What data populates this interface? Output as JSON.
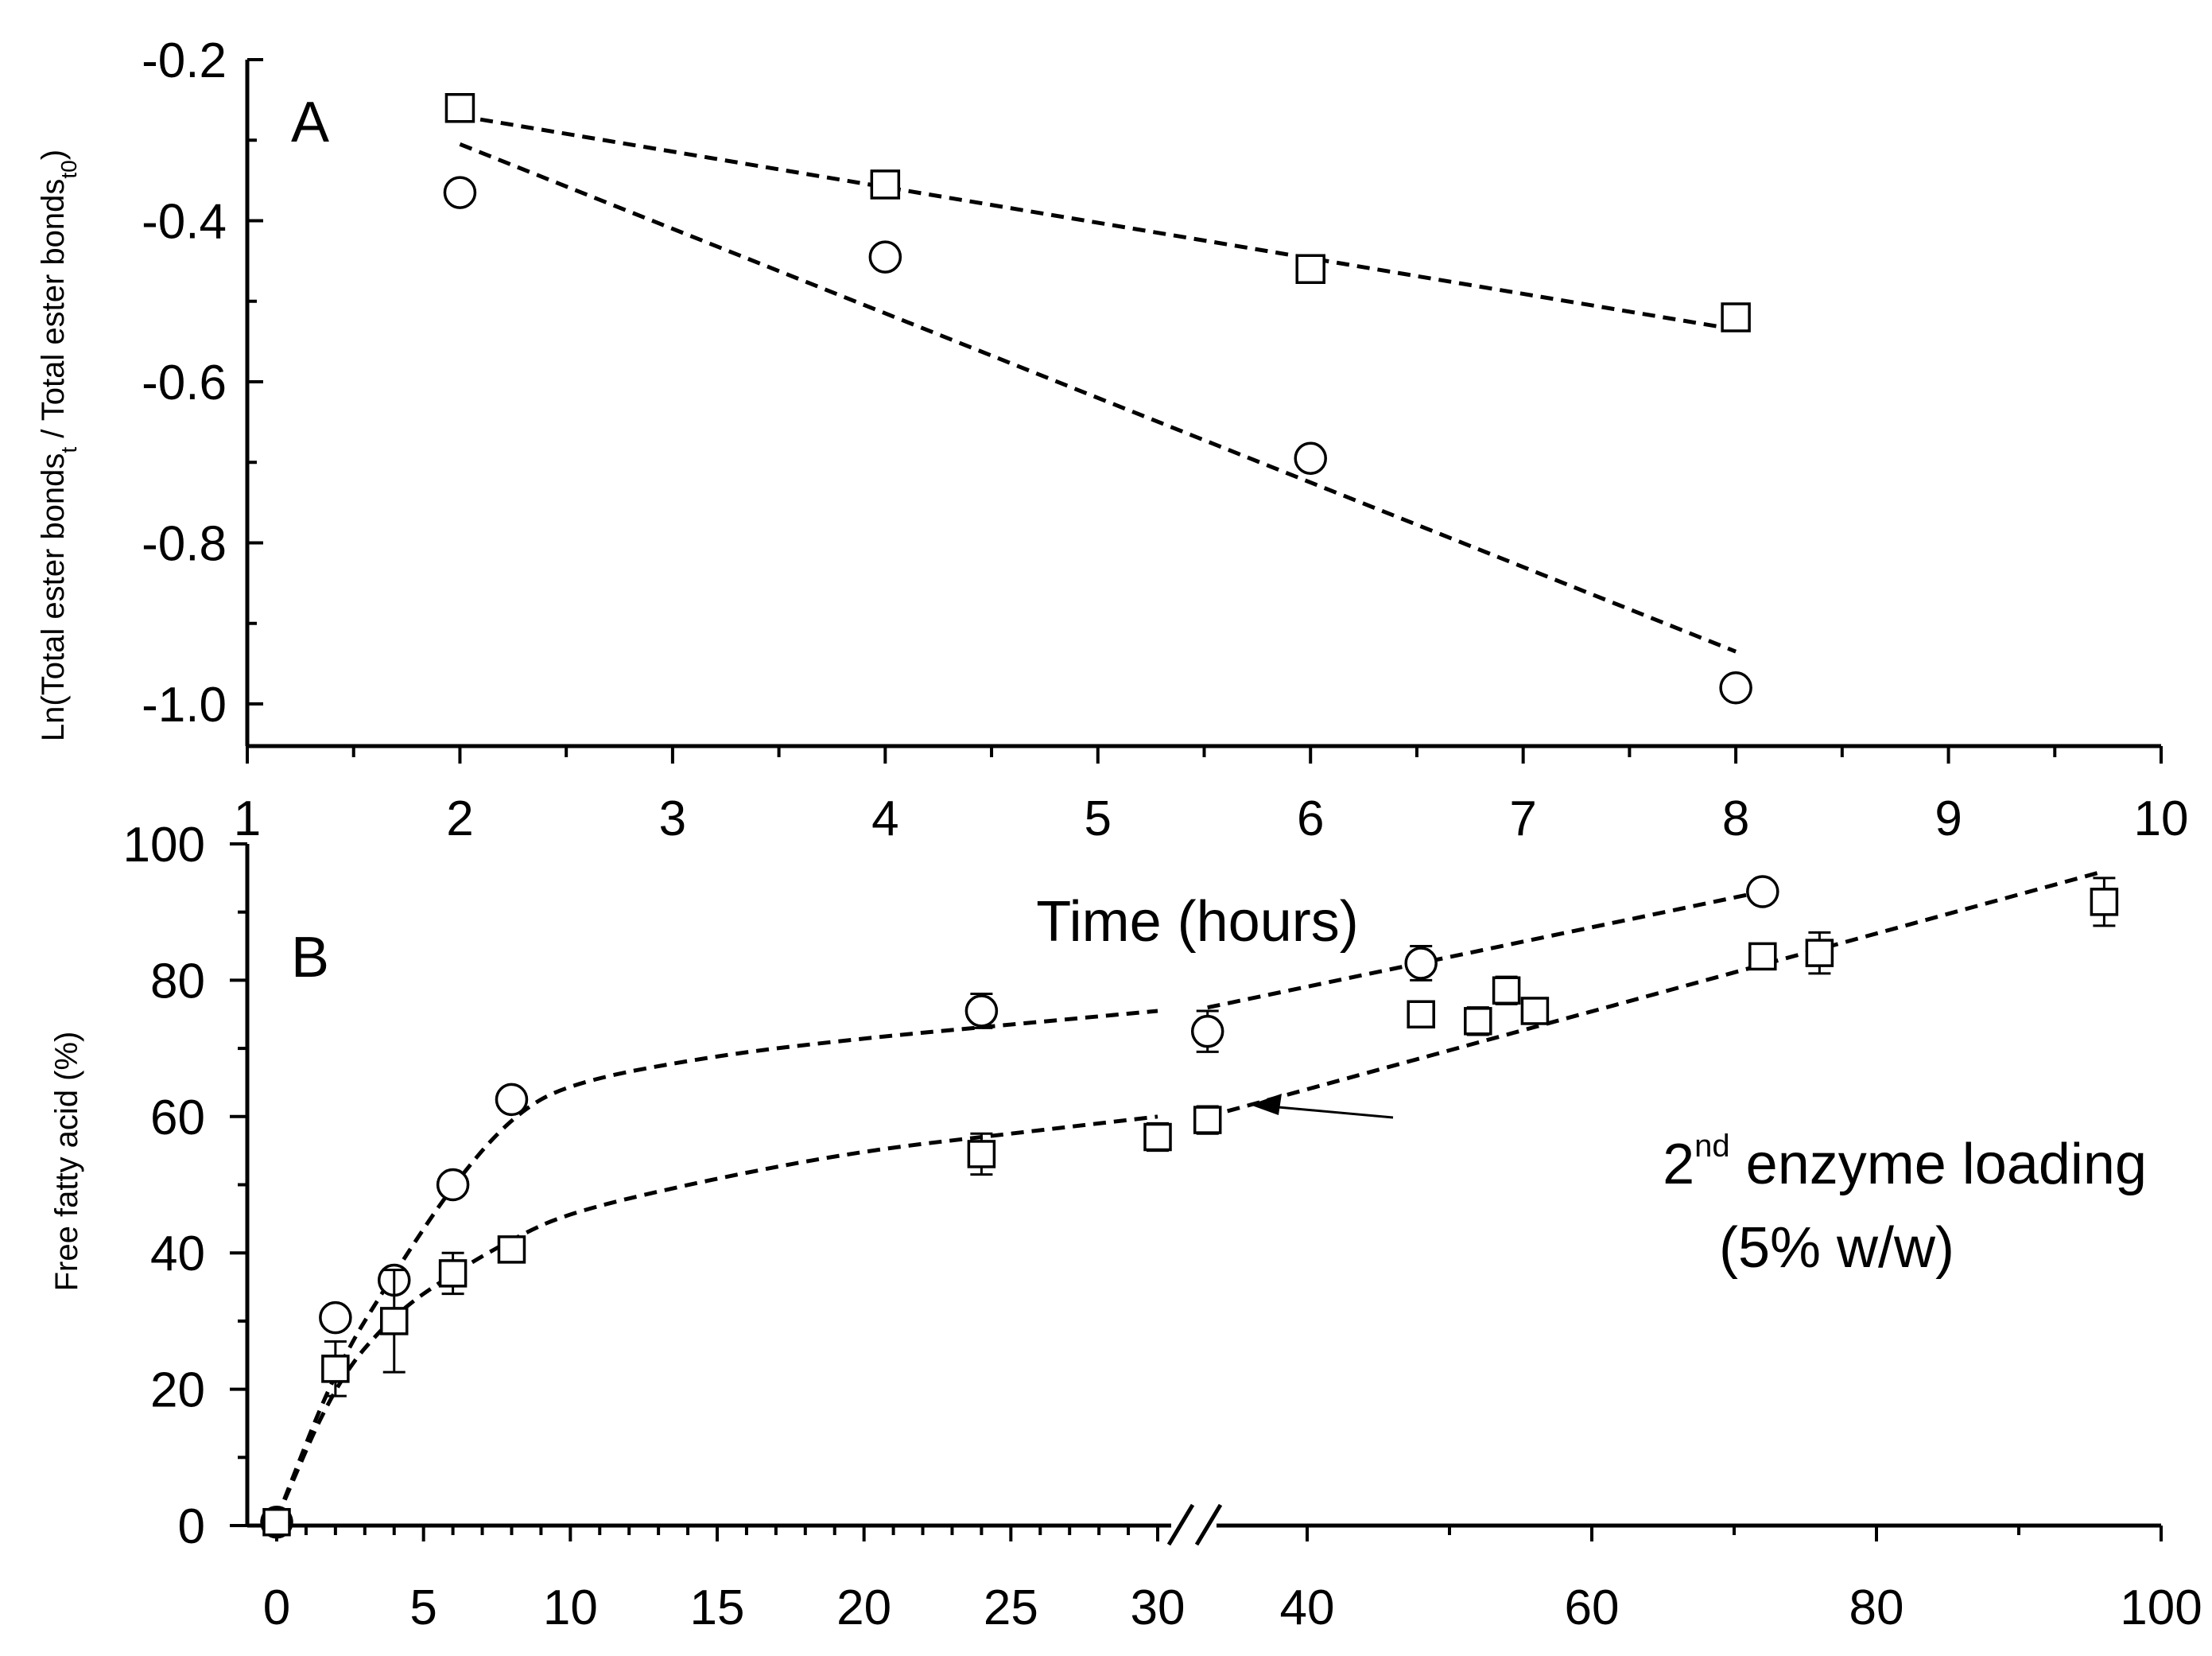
{
  "chart_data": [
    {
      "panel": "A",
      "type": "scatter",
      "x_label": "Time (hours)",
      "y_label_html": "Ln(Total ester bonds<tspan baseline-shift=\"sub\" font-size=\"28\">t</tspan> / Total ester bonds<tspan baseline-shift=\"sub\" font-size=\"28\">t0</tspan>)",
      "xlim": [
        1,
        10
      ],
      "ylim": [
        -1.05,
        -0.2
      ],
      "x_ticks": [
        1,
        2,
        3,
        4,
        5,
        6,
        7,
        8,
        9,
        10
      ],
      "y_ticks": [
        -0.2,
        -0.4,
        -0.6,
        -0.8,
        -1.0
      ],
      "x_tick_labels": [
        "1",
        "2",
        "3",
        "4",
        "5",
        "6",
        "7",
        "8",
        "9",
        "10"
      ],
      "y_tick_labels": [
        "-0.2",
        "-0.4",
        "-0.6",
        "-0.8",
        "-1.0"
      ],
      "series": [
        {
          "name": "squares",
          "marker": "square",
          "x": [
            2,
            4,
            6,
            8
          ],
          "y": [
            -0.26,
            -0.355,
            -0.46,
            -0.52
          ],
          "fit": {
            "x": [
              2,
              8
            ],
            "y": [
              -0.27,
              -0.535
            ]
          }
        },
        {
          "name": "circles",
          "marker": "circle",
          "x": [
            2,
            4,
            6,
            8
          ],
          "y": [
            -0.365,
            -0.445,
            -0.695,
            -0.98
          ],
          "fit": {
            "x": [
              2,
              8
            ],
            "y": [
              -0.305,
              -0.935
            ]
          }
        }
      ]
    },
    {
      "panel": "B",
      "type": "scatter",
      "y_label": "Free fatty acid (%)",
      "ylim": [
        0,
        100
      ],
      "x_ticks": [
        0,
        5,
        10,
        15,
        20,
        25,
        30,
        40,
        60,
        80,
        100
      ],
      "x_tick_labels": [
        "0",
        "5",
        "10",
        "15",
        "20",
        "25",
        "30",
        "40",
        "60",
        "80",
        "100"
      ],
      "y_ticks": [
        0,
        20,
        40,
        60,
        80,
        100
      ],
      "y_tick_labels": [
        "0",
        "20",
        "40",
        "60",
        "80",
        "100"
      ],
      "x_axis_break": "between 30 and 40 (two-segment axis: 0-30 and 30-100)",
      "series": [
        {
          "name": "circles",
          "marker": "circle",
          "x": [
            0,
            2,
            4,
            6,
            8,
            24,
            33,
            48,
            72
          ],
          "y": [
            0.5,
            30.5,
            36,
            50,
            62.5,
            75.5,
            72.5,
            82.5,
            93
          ],
          "err": [
            0,
            1.5,
            1.5,
            1.2,
            1.5,
            2.5,
            3,
            2.5,
            1.5
          ]
        },
        {
          "name": "squares",
          "marker": "square",
          "x": [
            0,
            2,
            4,
            6,
            8,
            24,
            30,
            33,
            48,
            52,
            54,
            56,
            72,
            76,
            96
          ],
          "y": [
            0.5,
            23,
            30,
            37,
            40.5,
            54.5,
            57,
            59.5,
            75,
            74,
            78.5,
            75.5,
            83.5,
            84,
            91.5
          ],
          "err": [
            0,
            4,
            7.5,
            3,
            1.5,
            3,
            2,
            2,
            1.5,
            2,
            2,
            1.5,
            1.5,
            3,
            3.5
          ]
        }
      ],
      "fits": [
        {
          "name": "circles-fit-1",
          "x": [
            0,
            2,
            4,
            6,
            8,
            10,
            15,
            20,
            25,
            30
          ],
          "y": [
            1,
            23,
            37,
            50,
            60,
            65,
            69,
            71.5,
            73.5,
            75.5
          ]
        },
        {
          "name": "circles-fit-2",
          "x": [
            33,
            72
          ],
          "y": [
            76,
            93
          ]
        },
        {
          "name": "squares-fit-1",
          "x": [
            0,
            2,
            4,
            6,
            8,
            10,
            15,
            20,
            25,
            30
          ],
          "y": [
            1,
            21,
            31,
            37,
            42,
            46,
            51,
            55,
            57.5,
            60
          ]
        },
        {
          "name": "squares-fit-2",
          "x": [
            33,
            96
          ],
          "y": [
            60,
            96
          ]
        }
      ],
      "annotation": {
        "line1_main": "2",
        "line1_sup": "nd",
        "line1_rest": " enzyme loading",
        "line2": "(5% w/w)",
        "arrow_target": {
          "x": 33,
          "y": 60
        }
      }
    }
  ],
  "panel_labels": {
    "a": "A",
    "b": "B"
  }
}
